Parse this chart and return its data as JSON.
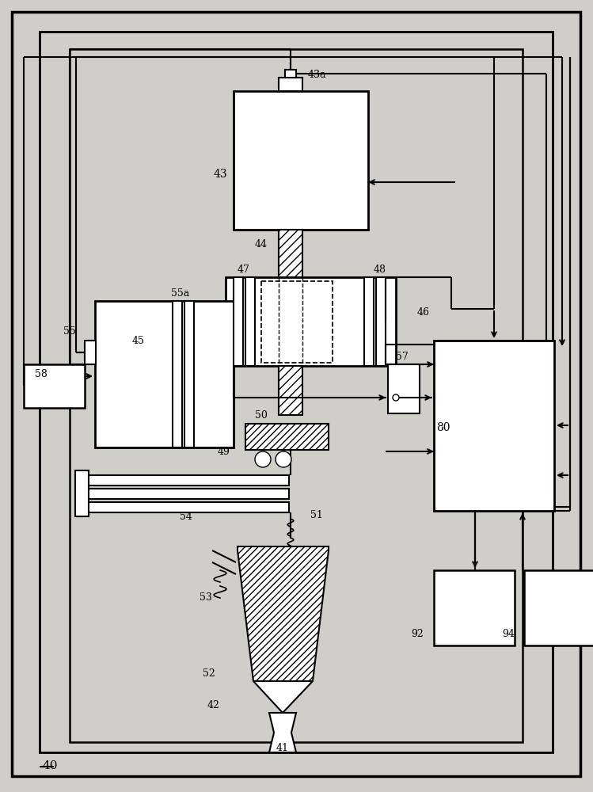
{
  "bg": "#d0cec8",
  "wc": "#ffffff",
  "lc": "#000000",
  "figw": 7.49,
  "figh": 10.0,
  "dpi": 100
}
